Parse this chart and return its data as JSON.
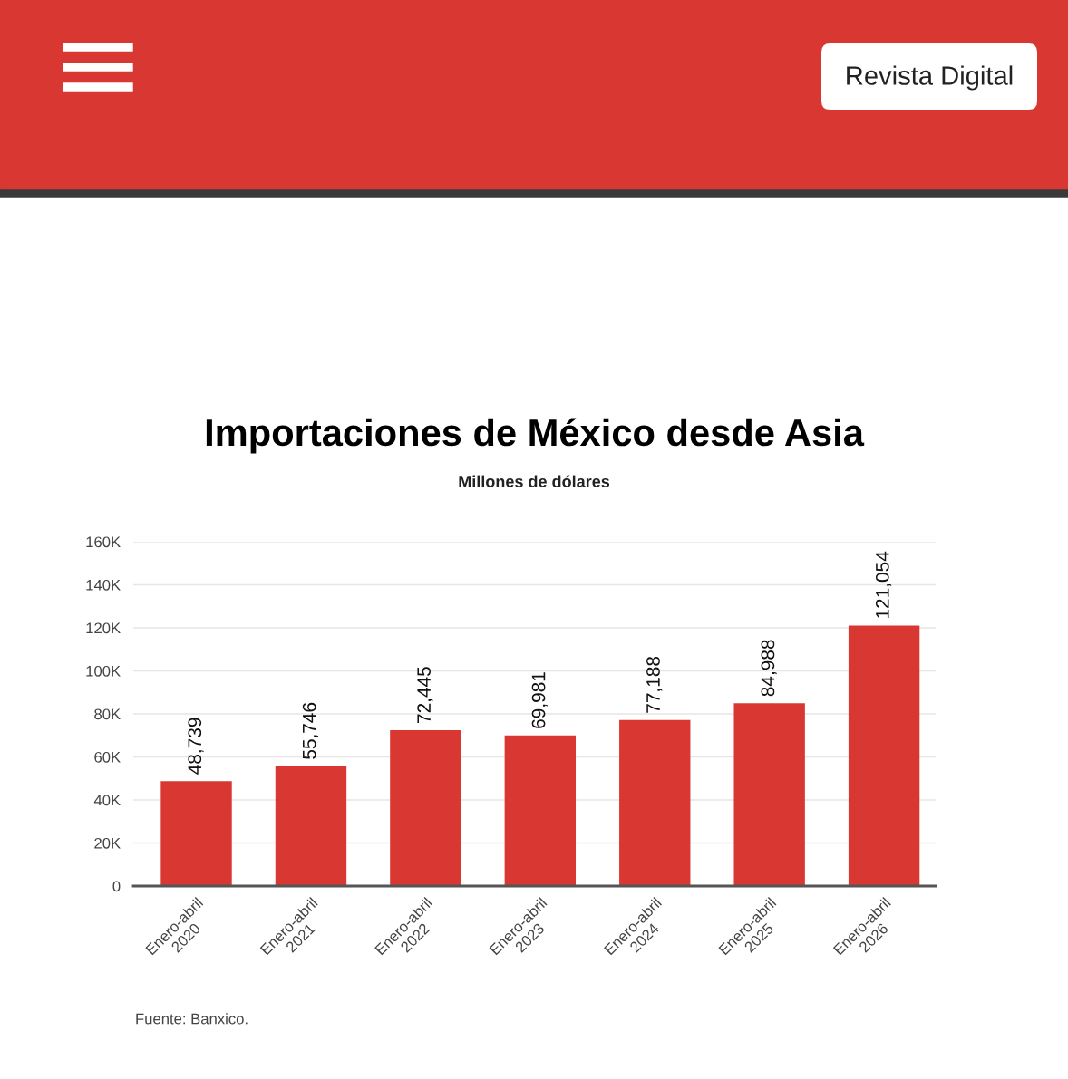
{
  "chart_data": {
    "type": "bar",
    "title": "Importaciones de México desde Asia",
    "subtitle": "Millones de dólares",
    "categories": [
      "Enero-abril\n2020",
      "Enero-abril\n2021",
      "Enero-abril\n2022",
      "Enero-abril\n2023",
      "Enero-abril\n2024",
      "Enero-abril\n2025",
      "Enero-abril\n2026"
    ],
    "values": [
      48739,
      55746,
      72445,
      69981,
      77188,
      84988,
      121054
    ],
    "value_labels": [
      "48,739",
      "55,746",
      "72,445",
      "69,981",
      "77,188",
      "84,988",
      "121,054"
    ],
    "color": "#d93832",
    "ylim": [
      0,
      160000
    ],
    "yticks": [
      {
        "value": 0,
        "label": "0"
      },
      {
        "value": 20000,
        "label": "20K"
      },
      {
        "value": 40000,
        "label": "40K"
      },
      {
        "value": 60000,
        "label": "60K"
      },
      {
        "value": 80000,
        "label": "80K"
      },
      {
        "value": 100000,
        "label": "100K"
      },
      {
        "value": 120000,
        "label": "120K"
      },
      {
        "value": 140000,
        "label": "140K"
      },
      {
        "value": 160000,
        "label": "160K"
      }
    ],
    "grid": "y",
    "annotations": [
      "Fuente: Banxico.",
      "Revista Digital"
    ]
  }
}
